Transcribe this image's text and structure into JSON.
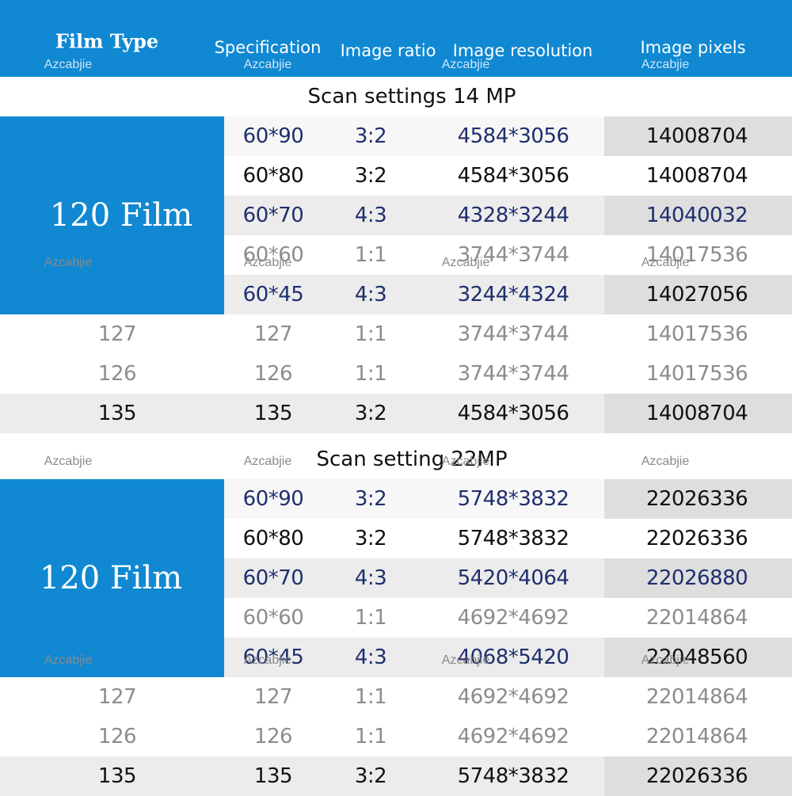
{
  "header": [
    "Film Type",
    "Specification",
    "Image ratio",
    "Image resolution",
    "Image pixels"
  ],
  "watermark": "Azcabjie",
  "sections": [
    {
      "title": "Scan settings 14 MP",
      "group_label": "120 Film",
      "group_rows": [
        [
          "60*90",
          "3:2",
          "4584*3056",
          "14008704"
        ],
        [
          "60*80",
          "3:2",
          "4584*3056",
          "14008704"
        ],
        [
          "60*70",
          "4:3",
          "4328*3244",
          "14040032"
        ],
        [
          "60*60",
          "1:1",
          "3744*3744",
          "14017536"
        ],
        [
          "60*45",
          "4:3",
          "3244*4324",
          "14027056"
        ]
      ],
      "rows": [
        [
          "127",
          "127",
          "1:1",
          "3744*3744",
          "14017536"
        ],
        [
          "126",
          "126",
          "1:1",
          "3744*3744",
          "14017536"
        ],
        [
          "135",
          "135",
          "3:2",
          "4584*3056",
          "14008704"
        ]
      ]
    },
    {
      "title": "Scan setting 22MP",
      "group_label": "120 Film",
      "group_rows": [
        [
          "60*90",
          "3:2",
          "5748*3832",
          "22026336"
        ],
        [
          "60*80",
          "3:2",
          "5748*3832",
          "22026336"
        ],
        [
          "60*70",
          "4:3",
          "5420*4064",
          "22026880"
        ],
        [
          "60*60",
          "1:1",
          "4692*4692",
          "22014864"
        ],
        [
          "60*45",
          "4:3",
          "4068*5420",
          "22048560"
        ]
      ],
      "rows": [
        [
          "127",
          "127",
          "1:1",
          "4692*4692",
          "22014864"
        ],
        [
          "126",
          "126",
          "1:1",
          "4692*4692",
          "22014864"
        ],
        [
          "135",
          "135",
          "3:2",
          "5748*3832",
          "22026336"
        ]
      ]
    }
  ]
}
